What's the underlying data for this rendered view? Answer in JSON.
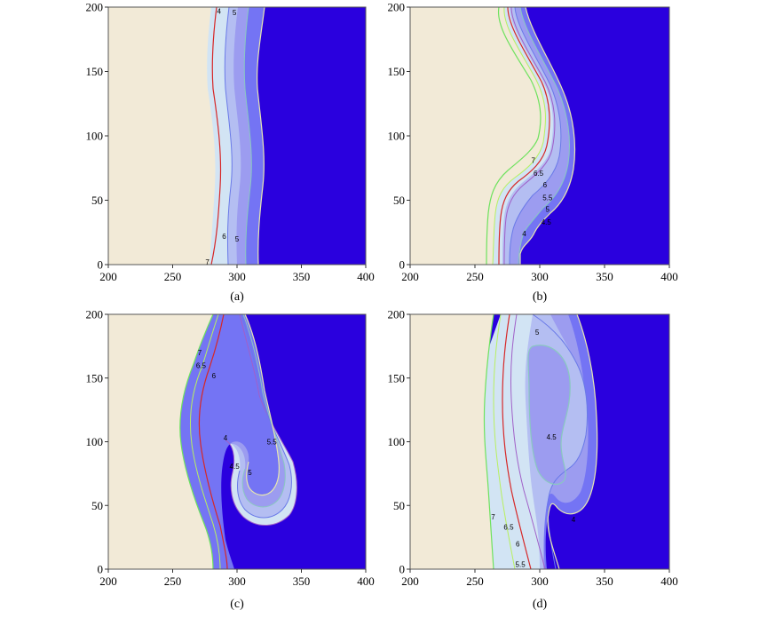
{
  "chart_data": [
    {
      "type": "contour",
      "panel_label": "(a)",
      "xticks": [
        200,
        250,
        300,
        350,
        400
      ],
      "yticks": [
        0,
        50,
        100,
        150,
        200
      ],
      "xlim": [
        200,
        400
      ],
      "ylim": [
        0,
        200
      ],
      "contour_labels": [
        {
          "text": "4",
          "x": 286,
          "y": 197
        },
        {
          "text": "5",
          "x": 298,
          "y": 196
        },
        {
          "text": "6",
          "x": 290,
          "y": 22
        },
        {
          "text": "5",
          "x": 300,
          "y": 20
        },
        {
          "text": "7",
          "x": 277,
          "y": 2
        }
      ]
    },
    {
      "type": "contour",
      "panel_label": "(b)",
      "xticks": [
        200,
        250,
        300,
        350,
        400
      ],
      "yticks": [
        0,
        50,
        100,
        150,
        200
      ],
      "xlim": [
        200,
        400
      ],
      "ylim": [
        0,
        200
      ],
      "contour_labels": [
        {
          "text": "7",
          "x": 295,
          "y": 81
        },
        {
          "text": "6.5",
          "x": 299,
          "y": 71
        },
        {
          "text": "6",
          "x": 304,
          "y": 62
        },
        {
          "text": "5.5",
          "x": 306,
          "y": 52
        },
        {
          "text": "5",
          "x": 306,
          "y": 43
        },
        {
          "text": "4.5",
          "x": 305,
          "y": 33
        },
        {
          "text": "4",
          "x": 288,
          "y": 24
        }
      ]
    },
    {
      "type": "contour",
      "panel_label": "(c)",
      "xticks": [
        200,
        250,
        300,
        350,
        400
      ],
      "yticks": [
        0,
        50,
        100,
        150,
        200
      ],
      "xlim": [
        200,
        400
      ],
      "ylim": [
        0,
        200
      ],
      "contour_labels": [
        {
          "text": "7",
          "x": 271,
          "y": 170
        },
        {
          "text": "6.5",
          "x": 272,
          "y": 160
        },
        {
          "text": "6",
          "x": 282,
          "y": 152
        },
        {
          "text": "5.5",
          "x": 327,
          "y": 100
        },
        {
          "text": "4",
          "x": 291,
          "y": 103
        },
        {
          "text": "4.5",
          "x": 298,
          "y": 81
        },
        {
          "text": "5",
          "x": 310,
          "y": 76
        }
      ]
    },
    {
      "type": "contour",
      "panel_label": "(d)",
      "xticks": [
        200,
        250,
        300,
        350,
        400
      ],
      "yticks": [
        0,
        50,
        100,
        150,
        200
      ],
      "xlim": [
        200,
        400
      ],
      "ylim": [
        0,
        200
      ],
      "contour_labels": [
        {
          "text": "5",
          "x": 298,
          "y": 186
        },
        {
          "text": "4.5",
          "x": 309,
          "y": 104
        },
        {
          "text": "4",
          "x": 326,
          "y": 39
        },
        {
          "text": "7",
          "x": 264,
          "y": 41
        },
        {
          "text": "6.5",
          "x": 276,
          "y": 33
        },
        {
          "text": "6",
          "x": 283,
          "y": 20
        },
        {
          "text": "5.5",
          "x": 285,
          "y": 4
        }
      ]
    }
  ],
  "colors": {
    "low_region": "#2a00de",
    "high_region": "#f2ead7",
    "band_4": "#7474f4",
    "band_45": "#9c9cf0",
    "band_5": "#b4bef2",
    "band_55": "#d2e4f4",
    "contour_7": "#6ee25e",
    "contour_65": "#b8f060",
    "contour_6": "#d62828",
    "contour_55": "#a060c8",
    "contour_5": "#6a7ae8",
    "contour_45": "#8ac8c0",
    "contour_4": "#e6e6b0"
  }
}
